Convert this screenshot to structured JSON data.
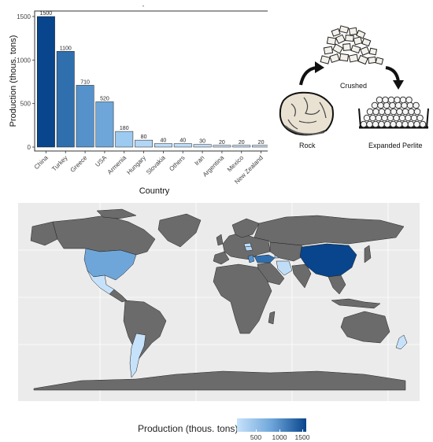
{
  "chart_data": {
    "type": "bar",
    "title": "-",
    "xlabel": "Country",
    "ylabel": "Production (thous. tons)",
    "ylim": [
      0,
      1550
    ],
    "yticks": [
      0,
      500,
      1000,
      1500
    ],
    "categories": [
      "China",
      "Turkey",
      "Greece",
      "USA",
      "Armenia",
      "Hungary",
      "Slovakia",
      "Others",
      "Iran",
      "Argentina",
      "Mexico",
      "New Zealand"
    ],
    "values": [
      1500,
      1100,
      710,
      520,
      180,
      80,
      40,
      40,
      30,
      20,
      20,
      20
    ],
    "colors": [
      "#08458c",
      "#2f6fae",
      "#5592cb",
      "#6ea6da",
      "#9ccaf1",
      "#b3d6f6",
      "#bcdbf8",
      "#bcdbf8",
      "#c0ddf8",
      "#c6e2fb",
      "#c6e2fb",
      "#c6e2fb"
    ],
    "grid": false,
    "legend": "none"
  },
  "process": {
    "rock_label": "Rock",
    "crushed_label": "Crushed",
    "expanded_label": "Expanded Perlite"
  },
  "map": {
    "type": "choropleth",
    "legend_title": "Production (thous. tons)",
    "legend_ticks": [
      "500",
      "1000",
      "1500"
    ],
    "legend_placement": "bottom",
    "no_data_color": "#6b6b6b",
    "background_color": "#ebebeb",
    "low_color": "#c6e2fb",
    "high_color": "#08458c"
  }
}
